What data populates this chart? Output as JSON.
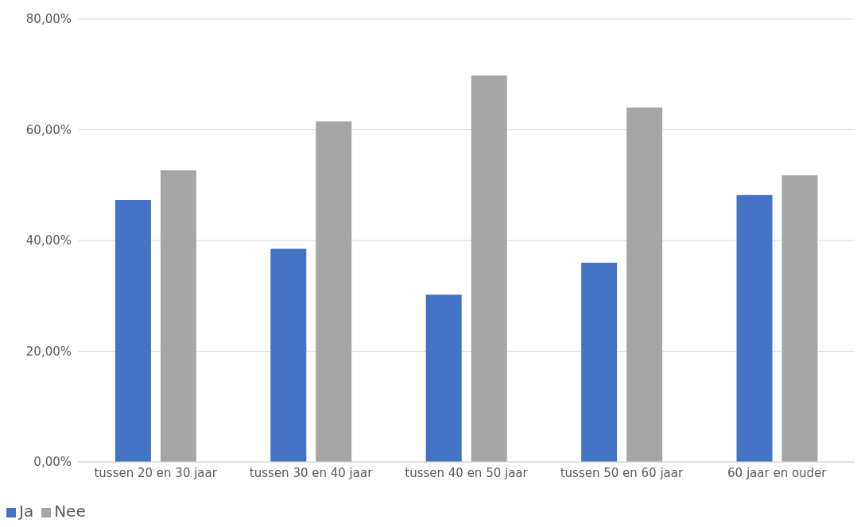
{
  "chart_data": {
    "type": "bar",
    "categories": [
      "tussen 20 en 30 jaar",
      "tussen 30 en 40 jaar",
      "tussen 40 en 50 jaar",
      "tussen 50 en 60 jaar",
      "60 jaar en ouder"
    ],
    "series": [
      {
        "name": "Ja",
        "color": "#4472c4",
        "values": [
          47.3,
          38.5,
          30.2,
          36,
          48.2
        ]
      },
      {
        "name": "Nee",
        "color": "#a5a5a5",
        "values": [
          52.7,
          61.5,
          69.8,
          64,
          51.8
        ]
      }
    ],
    "ylim": [
      0,
      80
    ],
    "yticks": [
      {
        "value": 0,
        "label": "0,00%"
      },
      {
        "value": 20,
        "label": "20,00%"
      },
      {
        "value": 40,
        "label": "40,00%"
      },
      {
        "value": 60,
        "label": "60,00%"
      },
      {
        "value": 80,
        "label": "80,00%"
      }
    ],
    "grid": "y",
    "legend": "bottom left"
  }
}
